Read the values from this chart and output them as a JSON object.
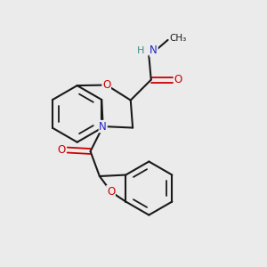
{
  "bg_color": "#ebebeb",
  "bond_color": "#1a1a1a",
  "oxygen_color": "#cc0000",
  "nitrogen_color": "#2222cc",
  "h_color": "#3a8a8a",
  "figsize": [
    3.0,
    3.0
  ],
  "dpi": 100,
  "xlim": [
    0,
    10
  ],
  "ylim": [
    0,
    10
  ],
  "bond_lw": 1.5,
  "inner_lw": 1.3,
  "font_size": 8.5
}
